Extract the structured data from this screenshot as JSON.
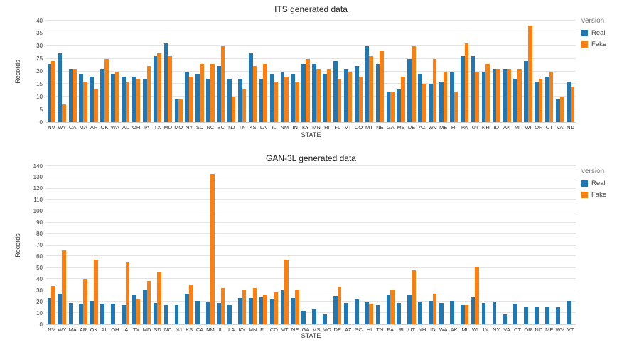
{
  "colors": {
    "real": "#1f77b4",
    "fake": "#ff7f0e",
    "grid": "#e3e3e3",
    "axis_baseline": "#cfcfcf"
  },
  "chart_data": [
    {
      "type": "bar",
      "title": "ITS generated data",
      "xlabel": "STATE",
      "ylabel": "Records",
      "ylim": [
        0,
        40
      ],
      "ytick_step": 5,
      "grid": true,
      "legend_title": "version",
      "legend_position": "right",
      "categories": [
        "NV",
        "WY",
        "CA",
        "MA",
        "AR",
        "OK",
        "WA",
        "AL",
        "OH",
        "IA",
        "TX",
        "MD",
        "MO",
        "NY",
        "SD",
        "NC",
        "SC",
        "NJ",
        "TN",
        "KS",
        "LA",
        "IL",
        "NM",
        "IN",
        "KY",
        "MN",
        "RI",
        "FL",
        "VT",
        "CO",
        "MT",
        "NE",
        "GA",
        "MS",
        "DE",
        "AZ",
        "WV",
        "ME",
        "HI",
        "PA",
        "UT",
        "NH",
        "ID",
        "AK",
        "MI",
        "WI",
        "OR",
        "CT",
        "VA",
        "ND"
      ],
      "series": [
        {
          "name": "Real",
          "color": "#1f77b4",
          "values": [
            23,
            27,
            21,
            19,
            18,
            21,
            19,
            18,
            18,
            17,
            26,
            31,
            9,
            20,
            19,
            17,
            22,
            17,
            17,
            27,
            17,
            19,
            20,
            19,
            23,
            23,
            19,
            24,
            21,
            22,
            30,
            23,
            12,
            13,
            25,
            19,
            15,
            16,
            20,
            26,
            26,
            20,
            21,
            21,
            17,
            24,
            16,
            18,
            9,
            16
          ]
        },
        {
          "name": "Fake",
          "color": "#ff7f0e",
          "values": [
            24,
            7,
            21,
            16,
            13,
            25,
            20,
            16,
            17,
            22,
            27,
            26,
            9,
            18,
            23,
            23,
            30,
            10,
            13,
            22,
            23,
            16,
            18,
            16,
            25,
            21,
            21,
            17,
            20,
            18,
            26,
            28,
            12,
            18,
            30,
            15,
            25,
            20,
            12,
            31,
            20,
            23,
            21,
            21,
            21,
            38,
            17,
            20,
            10,
            14
          ]
        }
      ]
    },
    {
      "type": "bar",
      "title": "GAN-3L generated data",
      "xlabel": "STATE",
      "ylabel": "Records",
      "ylim": [
        0,
        140
      ],
      "ytick_step": 10,
      "grid": true,
      "legend_title": "version",
      "legend_position": "right",
      "categories": [
        "NV",
        "WY",
        "MA",
        "AR",
        "OK",
        "AL",
        "OH",
        "IA",
        "TX",
        "MD",
        "SD",
        "NC",
        "NJ",
        "KS",
        "CA",
        "NM",
        "IL",
        "LA",
        "KY",
        "MN",
        "FL",
        "CO",
        "MT",
        "NE",
        "GA",
        "MS",
        "MO",
        "DE",
        "AZ",
        "SC",
        "HI",
        "TN",
        "PA",
        "RI",
        "UT",
        "NH",
        "ID",
        "WA",
        "AK",
        "MI",
        "WI",
        "IN",
        "NY",
        "VA",
        "CT",
        "OR",
        "ND",
        "ME",
        "WV",
        "VT"
      ],
      "series": [
        {
          "name": "Real",
          "color": "#1f77b4",
          "values": [
            23,
            27,
            19,
            18,
            21,
            18,
            18,
            17,
            26,
            31,
            19,
            17,
            17,
            27,
            21,
            20,
            19,
            17,
            23,
            23,
            24,
            22,
            30,
            23,
            12,
            13,
            9,
            25,
            19,
            22,
            20,
            17,
            26,
            19,
            26,
            20,
            21,
            19,
            21,
            17,
            24,
            19,
            20,
            9,
            18,
            16,
            16,
            16,
            15,
            21
          ]
        },
        {
          "name": "Fake",
          "color": "#ff7f0e",
          "values": [
            34,
            65,
            0,
            40,
            57,
            0,
            0,
            55,
            22,
            38,
            46,
            0,
            0,
            35,
            0,
            133,
            32,
            0,
            31,
            32,
            26,
            29,
            57,
            31,
            0,
            0,
            0,
            33,
            0,
            0,
            18,
            0,
            31,
            0,
            48,
            0,
            27,
            0,
            0,
            17,
            51,
            0,
            0,
            0,
            0,
            0,
            0,
            0,
            0,
            0
          ]
        }
      ]
    }
  ]
}
